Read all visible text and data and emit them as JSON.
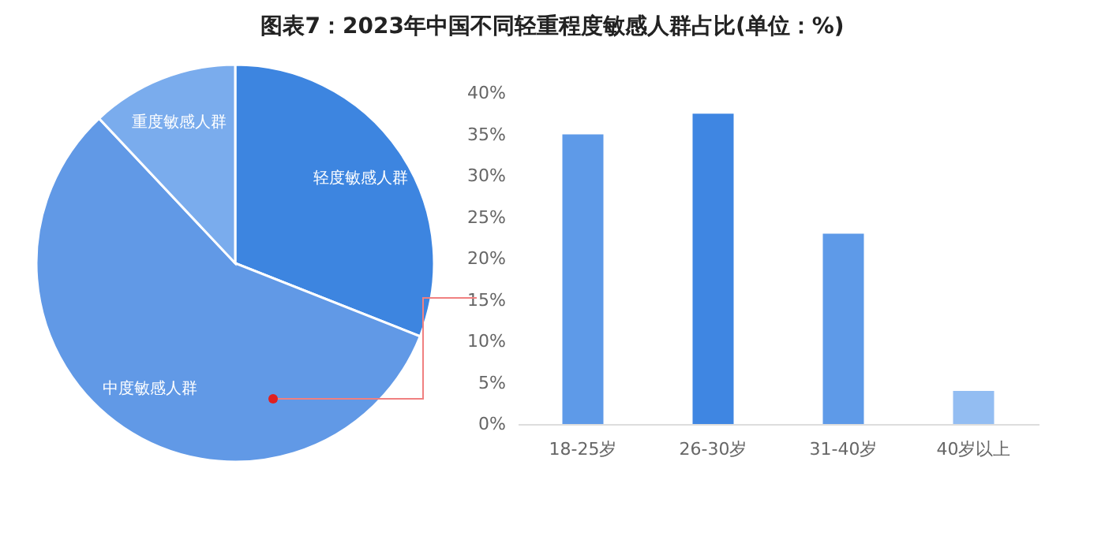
{
  "chart_data": [
    {
      "type": "pie",
      "title": "图表7：2023年中国不同轻重程度敏感人群占比(单位：%)",
      "categories": [
        "轻度敏感人群",
        "中度敏感人群",
        "重度敏感人群"
      ],
      "values": [
        31,
        57,
        12
      ],
      "colors": [
        "#3d85e0",
        "#6199e6",
        "#7aaced"
      ]
    },
    {
      "type": "bar",
      "categories": [
        "18-25岁",
        "26-30岁",
        "31-40岁",
        "40岁以上"
      ],
      "values": [
        35,
        37.5,
        23,
        4
      ],
      "colors": [
        "#5e9ae8",
        "#3f86e2",
        "#5e9ae8",
        "#93bdf2"
      ],
      "ylim": [
        0,
        40
      ],
      "yticks": [
        {
          "value": 0,
          "label": "0%"
        },
        {
          "value": 5,
          "label": "5%"
        },
        {
          "value": 10,
          "label": "10%"
        },
        {
          "value": 15,
          "label": "15%"
        },
        {
          "value": 20,
          "label": "20%"
        },
        {
          "value": 25,
          "label": "25%"
        },
        {
          "value": 30,
          "label": "30%"
        },
        {
          "value": 35,
          "label": "35%"
        },
        {
          "value": 40,
          "label": "40%"
        }
      ]
    }
  ]
}
